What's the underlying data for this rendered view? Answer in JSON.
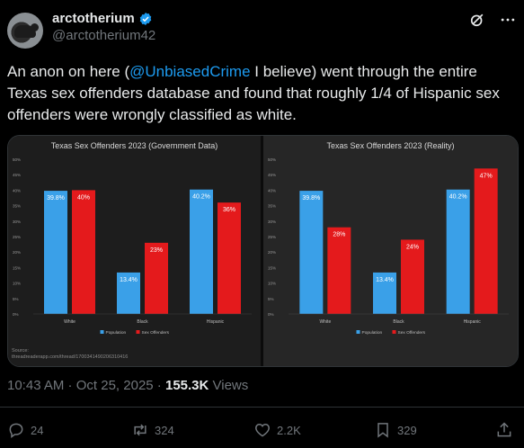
{
  "author": {
    "display_name": "arctotherium",
    "handle": "@arctotherium42"
  },
  "tweet": {
    "text_before": "An anon on here (",
    "mention": "@UnbiasedCrime",
    "text_after": " I believe) went through the entire Texas sex offenders database and found that roughly 1/4 of Hispanic sex offenders were wrongly classified as white."
  },
  "meta": {
    "time": "10:43 AM",
    "dot1": " · ",
    "date": "Oct 25, 2025",
    "dot2": " · ",
    "views_count": "155.3K",
    "views_label": " Views"
  },
  "actions": {
    "replies": "24",
    "reposts": "324",
    "likes": "2.2K",
    "bookmarks": "329"
  },
  "colors": {
    "population": "#3aa0e8",
    "offenders": "#e41a1c",
    "verified": "#1d9bf0"
  },
  "media": {
    "source_line1": "Source:",
    "source_line2": "threadreaderapp.com/thread/1700341490206310416"
  },
  "chart_data": [
    {
      "type": "bar",
      "title": "Texas Sex Offenders 2023 (Government Data)",
      "categories": [
        "White",
        "Black",
        "Hispanic"
      ],
      "series": [
        {
          "name": "Population",
          "values": [
            39.8,
            13.4,
            40.2
          ],
          "labels": [
            "39.8%",
            "13.4%",
            "40.2%"
          ]
        },
        {
          "name": "Sex Offenders",
          "values": [
            40,
            23,
            36
          ],
          "labels": [
            "40%",
            "23%",
            "36%"
          ]
        }
      ],
      "ylim": [
        0,
        50
      ],
      "yticks": [
        "0%",
        "5%",
        "10%",
        "15%",
        "20%",
        "25%",
        "30%",
        "35%",
        "40%",
        "45%",
        "50%"
      ],
      "grid": false,
      "legend": "bottom-center"
    },
    {
      "type": "bar",
      "title": "Texas Sex Offenders 2023 (Reality)",
      "categories": [
        "White",
        "Black",
        "Hispanic"
      ],
      "series": [
        {
          "name": "Population",
          "values": [
            39.8,
            13.4,
            40.2
          ],
          "labels": [
            "39.8%",
            "13.4%",
            "40.2%"
          ]
        },
        {
          "name": "Sex Offenders",
          "values": [
            28,
            24,
            47
          ],
          "labels": [
            "28%",
            "24%",
            "47%"
          ]
        }
      ],
      "ylim": [
        0,
        50
      ],
      "yticks": [
        "0%",
        "5%",
        "10%",
        "15%",
        "20%",
        "25%",
        "30%",
        "35%",
        "40%",
        "45%",
        "50%"
      ],
      "grid": false,
      "legend": "bottom-center"
    }
  ]
}
